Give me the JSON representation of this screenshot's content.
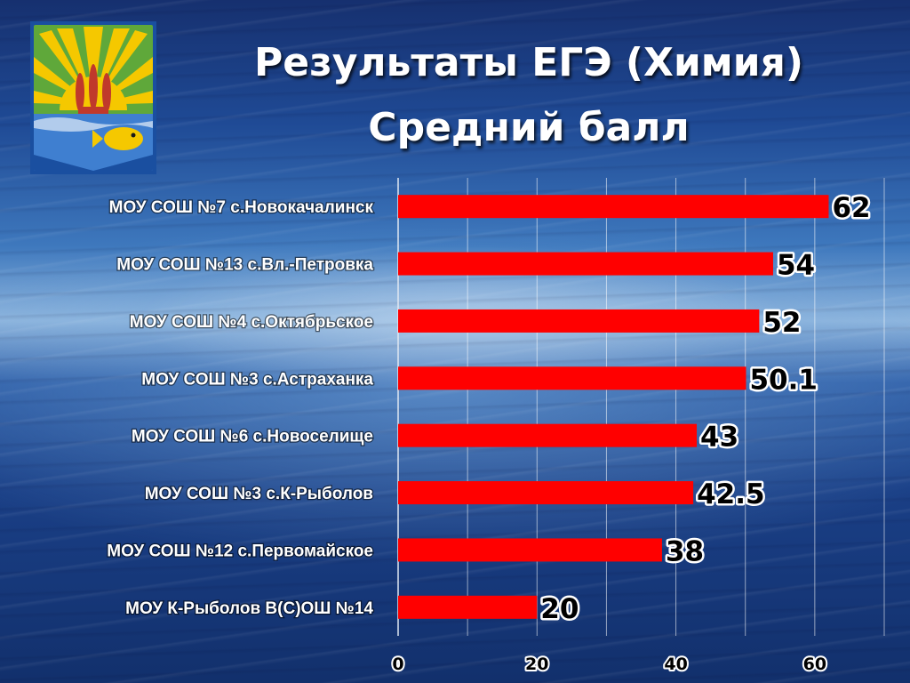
{
  "title": {
    "line1": "Результаты ЕГЭ (Химия)",
    "line2": "Средний балл"
  },
  "emblem": {
    "icon": "coat-of-arms-icon",
    "colors": {
      "field_green": "#5fa83a",
      "sun_yellow": "#f5c800",
      "sky_blue": "#3f7fd0",
      "wheat_red": "#c0392b",
      "frame": "#1a4fa0"
    }
  },
  "chart_data": {
    "type": "bar",
    "orientation": "horizontal",
    "categories": [
      "МОУ СОШ №7 с.Новокачалинск",
      "МОУ СОШ №13 с.Вл.-Петровка",
      "МОУ СОШ №4 с.Октябрьское",
      "МОУ СОШ №3 с.Астраханка",
      "МОУ СОШ №6 с.Новоселище",
      "МОУ СОШ №3 с.К-Рыболов",
      "МОУ СОШ №12 с.Первомайское",
      "МОУ К-Рыболов В(С)ОШ №14"
    ],
    "values": [
      62,
      54,
      52,
      50.1,
      43,
      42.5,
      38,
      20
    ],
    "value_labels": [
      "62",
      "54",
      "52",
      "50.1",
      "43",
      "42.5",
      "38",
      "20"
    ],
    "xlim": [
      0,
      70
    ],
    "xticks": [
      0,
      20,
      40,
      60
    ],
    "xtick_labels": [
      "0",
      "20",
      "40",
      "60"
    ],
    "grid": true,
    "bar_color": "#ff0000",
    "gridline_color": "#ffffff"
  }
}
